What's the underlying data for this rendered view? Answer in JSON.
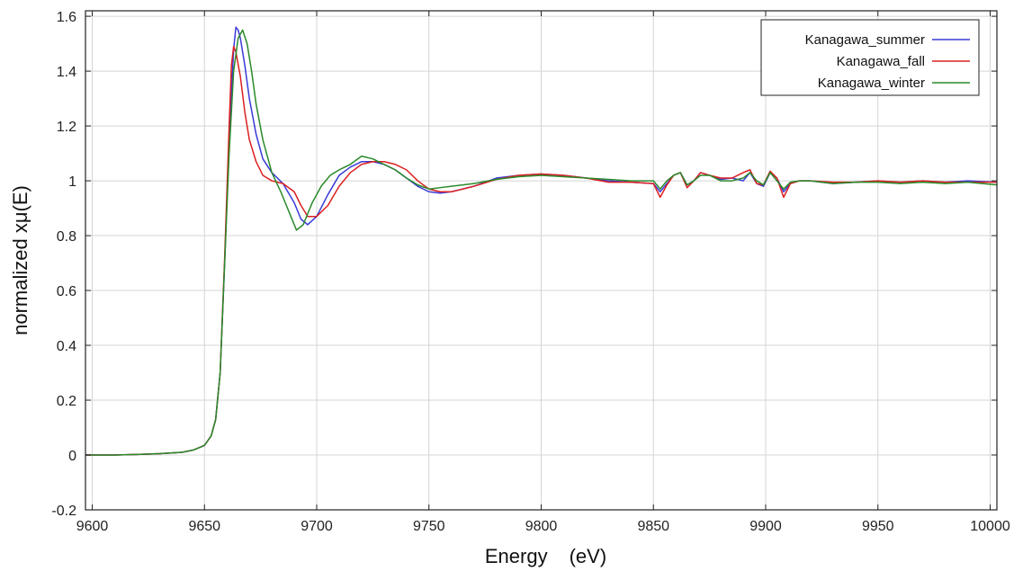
{
  "chart_data": {
    "type": "line",
    "title": "",
    "xlabel": "Energy",
    "xunit": "(eV)",
    "ylabel": "normalized xμ(E)",
    "xlim": [
      9597,
      10003
    ],
    "ylim": [
      -0.2,
      1.62
    ],
    "xticks": [
      9600,
      9650,
      9700,
      9750,
      9800,
      9850,
      9900,
      9950,
      10000
    ],
    "yticks": [
      -0.2,
      0,
      0.2,
      0.4,
      0.6,
      0.8,
      1,
      1.2,
      1.4,
      1.6
    ],
    "ytick_labels": [
      "-0.2",
      "0",
      "0.2",
      "0.4",
      "0.6",
      "0.8",
      "1",
      "1.2",
      "1.4",
      "1.6"
    ],
    "grid": true,
    "legend_position": "top-right",
    "series": [
      {
        "name": "Kanagawa_summer",
        "color": "#3a3ad8",
        "x": [
          9597,
          9610,
          9620,
          9630,
          9640,
          9645,
          9650,
          9653,
          9655,
          9657,
          9659,
          9661,
          9663,
          9664,
          9665,
          9666,
          9668,
          9670,
          9673,
          9676,
          9680,
          9685,
          9690,
          9693,
          9696,
          9700,
          9705,
          9710,
          9715,
          9720,
          9725,
          9730,
          9735,
          9740,
          9745,
          9750,
          9755,
          9760,
          9770,
          9780,
          9790,
          9800,
          9810,
          9820,
          9830,
          9840,
          9850,
          9853,
          9856,
          9859,
          9862,
          9865,
          9868,
          9871,
          9875,
          9880,
          9885,
          9890,
          9893,
          9896,
          9899,
          9902,
          9905,
          9908,
          9911,
          9915,
          9920,
          9930,
          9940,
          9950,
          9960,
          9970,
          9980,
          9990,
          10003
        ],
        "values": [
          0,
          0,
          0.002,
          0.005,
          0.01,
          0.018,
          0.035,
          0.07,
          0.13,
          0.3,
          0.7,
          1.15,
          1.48,
          1.56,
          1.55,
          1.52,
          1.42,
          1.3,
          1.17,
          1.08,
          1.03,
          0.99,
          0.92,
          0.86,
          0.84,
          0.87,
          0.95,
          1.02,
          1.05,
          1.07,
          1.07,
          1.06,
          1.04,
          1.01,
          0.98,
          0.96,
          0.955,
          0.96,
          0.98,
          1.01,
          1.02,
          1.025,
          1.02,
          1.01,
          1.0,
          0.995,
          0.99,
          0.96,
          0.99,
          1.02,
          1.03,
          0.985,
          1.0,
          1.03,
          1.02,
          1.005,
          1.01,
          1.0,
          1.03,
          0.99,
          0.98,
          1.03,
          1.01,
          0.96,
          0.99,
          1.0,
          1.0,
          0.99,
          0.995,
          1.0,
          0.995,
          1.0,
          0.995,
          1.0,
          0.995
        ]
      },
      {
        "name": "Kanagawa_fall",
        "color": "#dc2020",
        "x": [
          9597,
          9610,
          9620,
          9630,
          9640,
          9645,
          9650,
          9653,
          9655,
          9657,
          9659,
          9661,
          9662,
          9663,
          9664,
          9666,
          9668,
          9670,
          9673,
          9676,
          9680,
          9685,
          9690,
          9693,
          9696,
          9700,
          9705,
          9710,
          9715,
          9720,
          9725,
          9730,
          9735,
          9740,
          9745,
          9750,
          9755,
          9760,
          9770,
          9780,
          9790,
          9800,
          9810,
          9820,
          9830,
          9840,
          9850,
          9853,
          9856,
          9859,
          9862,
          9865,
          9868,
          9871,
          9875,
          9880,
          9885,
          9890,
          9893,
          9896,
          9899,
          9902,
          9905,
          9908,
          9911,
          9915,
          9920,
          9930,
          9940,
          9950,
          9960,
          9970,
          9980,
          9990,
          10003
        ],
        "values": [
          0,
          0,
          0.002,
          0.005,
          0.01,
          0.018,
          0.035,
          0.07,
          0.13,
          0.3,
          0.72,
          1.2,
          1.42,
          1.49,
          1.47,
          1.38,
          1.25,
          1.15,
          1.07,
          1.02,
          1.0,
          0.99,
          0.96,
          0.91,
          0.87,
          0.87,
          0.91,
          0.98,
          1.03,
          1.06,
          1.07,
          1.07,
          1.06,
          1.04,
          1.0,
          0.97,
          0.96,
          0.96,
          0.98,
          1.005,
          1.02,
          1.025,
          1.02,
          1.01,
          0.995,
          0.995,
          0.99,
          0.94,
          0.985,
          1.02,
          1.03,
          0.975,
          1.0,
          1.03,
          1.02,
          1.01,
          1.01,
          1.03,
          1.04,
          0.99,
          0.985,
          1.035,
          1.01,
          0.94,
          0.99,
          1.0,
          1.0,
          0.995,
          0.995,
          1.0,
          0.995,
          1.0,
          0.995,
          0.995,
          0.995
        ]
      },
      {
        "name": "Kanagawa_winter",
        "color": "#2a8a2a",
        "x": [
          9597,
          9610,
          9620,
          9630,
          9640,
          9645,
          9650,
          9653,
          9655,
          9657,
          9659,
          9661,
          9663,
          9665,
          9667,
          9669,
          9671,
          9673,
          9676,
          9680,
          9684,
          9688,
          9691,
          9694,
          9698,
          9702,
          9706,
          9710,
          9715,
          9720,
          9725,
          9730,
          9735,
          9740,
          9745,
          9750,
          9755,
          9760,
          9770,
          9780,
          9790,
          9800,
          9810,
          9820,
          9830,
          9840,
          9850,
          9853,
          9856,
          9859,
          9862,
          9865,
          9868,
          9871,
          9875,
          9880,
          9885,
          9890,
          9893,
          9896,
          9899,
          9902,
          9905,
          9908,
          9911,
          9915,
          9920,
          9930,
          9940,
          9950,
          9960,
          9970,
          9980,
          9990,
          10003
        ],
        "values": [
          0,
          0,
          0.002,
          0.005,
          0.01,
          0.018,
          0.035,
          0.07,
          0.13,
          0.3,
          0.7,
          1.1,
          1.4,
          1.52,
          1.55,
          1.5,
          1.4,
          1.28,
          1.15,
          1.03,
          0.96,
          0.88,
          0.82,
          0.84,
          0.92,
          0.98,
          1.02,
          1.04,
          1.06,
          1.09,
          1.08,
          1.06,
          1.04,
          1.01,
          0.985,
          0.97,
          0.975,
          0.98,
          0.99,
          1.005,
          1.015,
          1.02,
          1.015,
          1.01,
          1.005,
          1.0,
          1.0,
          0.97,
          1.0,
          1.02,
          1.03,
          0.985,
          1.0,
          1.02,
          1.02,
          1.0,
          1.0,
          1.01,
          1.03,
          1.0,
          0.985,
          1.03,
          1.0,
          0.97,
          0.995,
          1.0,
          1.0,
          0.99,
          0.995,
          0.995,
          0.99,
          0.995,
          0.99,
          0.995,
          0.985
        ]
      }
    ]
  }
}
